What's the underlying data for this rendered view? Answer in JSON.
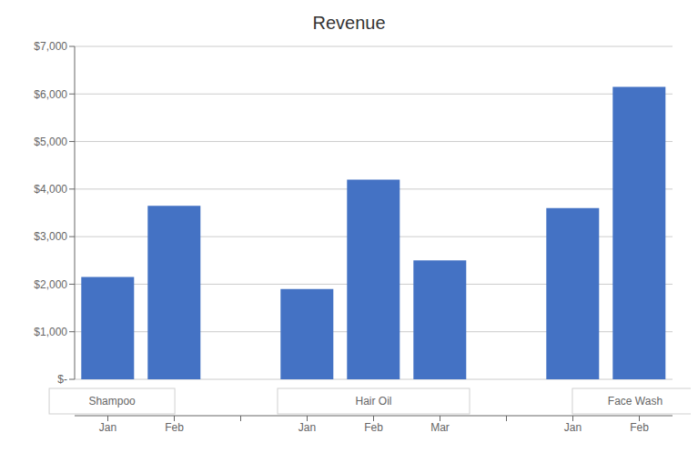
{
  "chart_data": {
    "type": "bar",
    "title": "Revenue",
    "color": "#4472C4",
    "groups": [
      {
        "label": "Shampoo",
        "categories": [
          "Jan",
          "Feb"
        ],
        "values": [
          2150,
          3650
        ]
      },
      {
        "label": "Hair Oil",
        "categories": [
          "Jan",
          "Feb",
          "Mar"
        ],
        "values": [
          1900,
          4200,
          2500
        ]
      },
      {
        "label": "Face Wash",
        "categories": [
          "Jan",
          "Feb"
        ],
        "values": [
          3600,
          6150
        ]
      }
    ],
    "ylim": [
      0,
      7000
    ],
    "yticks": [
      {
        "value": 0,
        "label": "$-"
      },
      {
        "value": 1000,
        "label": "$1,000"
      },
      {
        "value": 2000,
        "label": "$2,000"
      },
      {
        "value": 3000,
        "label": "$3,000"
      },
      {
        "value": 4000,
        "label": "$4,000"
      },
      {
        "value": 5000,
        "label": "$5,000"
      },
      {
        "value": 6000,
        "label": "$6,000"
      },
      {
        "value": 7000,
        "label": "$7,000"
      }
    ],
    "grid": true
  }
}
